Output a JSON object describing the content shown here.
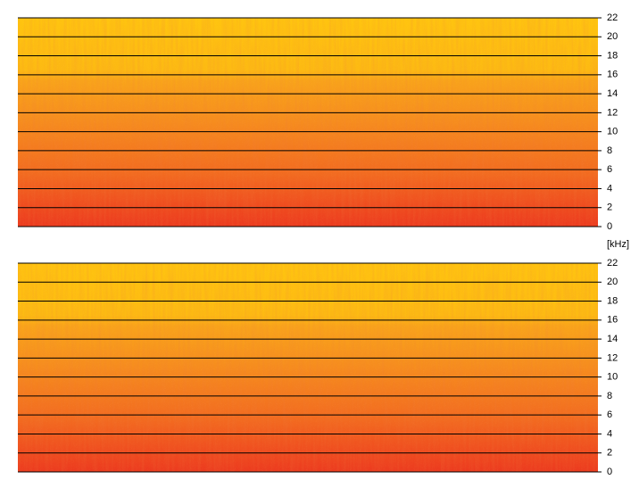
{
  "chart_data": [
    {
      "type": "spectrogram",
      "ylim": [
        0,
        22
      ],
      "yticks": [
        0,
        2,
        4,
        6,
        8,
        10,
        12,
        14,
        16,
        18,
        20,
        22
      ],
      "grid": true,
      "y_label": "[kHz]"
    },
    {
      "type": "spectrogram",
      "ylim": [
        0,
        22
      ],
      "yticks": [
        0,
        2,
        4,
        6,
        8,
        10,
        12,
        14,
        16,
        18,
        20,
        22
      ],
      "grid": true
    }
  ]
}
